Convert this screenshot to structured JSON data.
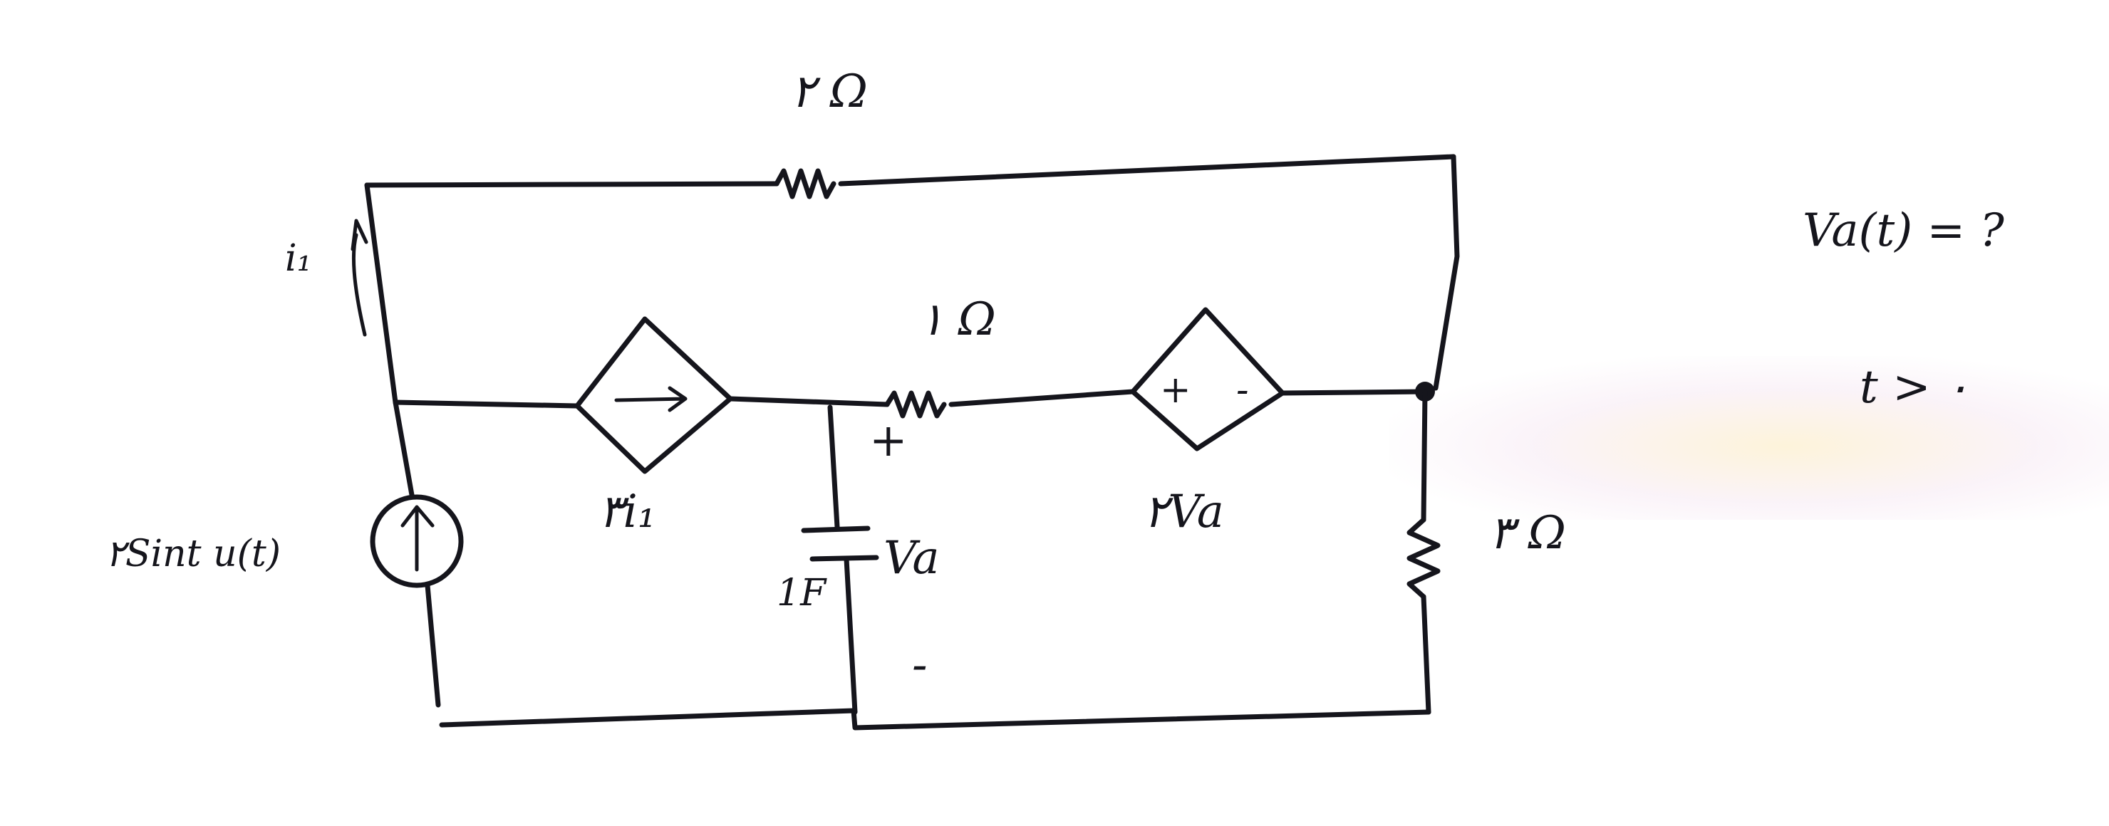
{
  "circuit": {
    "resistors": {
      "top": "۲ Ω",
      "middle": "۱ Ω",
      "right": "۳ Ω"
    },
    "capacitor": "1F",
    "current_source": "۲Sint u(t)",
    "dependent_current_source": "۳i₁",
    "dependent_voltage_source": "۲Va",
    "branch_current": "i₁",
    "voltage_label": "Va",
    "plus_sign": "+",
    "minus_sign": "-"
  },
  "question": {
    "expression": "Va(t) = ?",
    "condition": "t > ۰"
  },
  "colors": {
    "ink": "#15151c",
    "background": "#ffffff"
  }
}
